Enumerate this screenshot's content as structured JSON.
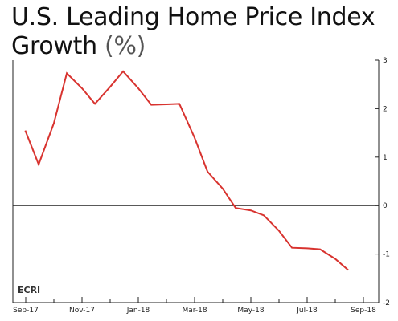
{
  "title": "U.S. Leading Home Price Index",
  "title_line2": "Growth",
  "title_unit": "(%)",
  "logo": "ECRI",
  "chart_data": {
    "type": "line",
    "title": "U.S. Leading Home Price Index Growth (%)",
    "xlabel": "",
    "ylabel": "",
    "x_ticks": [
      "Sep-17",
      "Nov-17",
      "Jan-18",
      "Mar-18",
      "May-18",
      "Jul-18",
      "Sep-18"
    ],
    "x_range_months": [
      "Sep-17",
      "Sep-18"
    ],
    "y_ticks": [
      3,
      2,
      1,
      0,
      -1,
      -2
    ],
    "ylim": [
      -2,
      3
    ],
    "y_axis_position": "right",
    "zero_line": true,
    "grid": false,
    "color": "#d8332f",
    "series": [
      {
        "x": [
          "2017-08-31",
          "2017-09-15",
          "2017-10-01",
          "2017-10-15",
          "2017-11-01",
          "2017-11-15",
          "2017-12-01",
          "2017-12-15",
          "2018-01-01",
          "2018-01-15",
          "2018-02-01",
          "2018-02-15",
          "2018-03-01",
          "2018-03-15",
          "2018-04-01",
          "2018-04-15",
          "2018-05-01",
          "2018-05-15",
          "2018-06-01",
          "2018-06-15",
          "2018-07-01",
          "2018-07-15",
          "2018-08-01",
          "2018-08-15"
        ],
        "values": [
          1.55,
          0.85,
          1.7,
          2.73,
          2.42,
          2.1,
          2.45,
          2.77,
          2.42,
          2.08,
          2.09,
          2.1,
          1.4,
          0.7,
          0.35,
          -0.05,
          -0.1,
          -0.2,
          -0.52,
          -0.87,
          -0.88,
          -0.9,
          -1.1,
          -1.33
        ]
      }
    ]
  }
}
